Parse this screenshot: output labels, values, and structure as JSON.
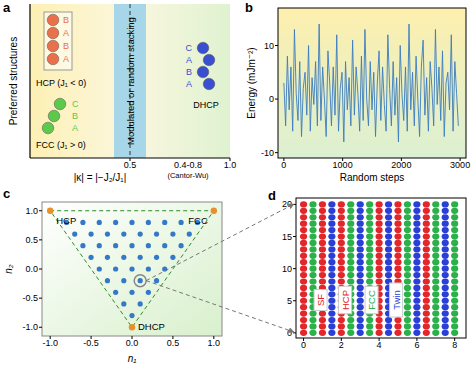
{
  "chart_data": [
    {
      "type": "schematic",
      "panel_label": "a",
      "ylabel": "Preferred structures",
      "xlabel": "|κ| = |−J₂/J₁|",
      "xlim": [
        0,
        1
      ],
      "xticks": [
        0.5,
        {
          "value": 1,
          "label": "1.0"
        }
      ],
      "band": [
        0.42,
        0.58
      ],
      "divider": 0.5,
      "band_label": "Modulated or random stacking",
      "range_label": "0.4-0.8",
      "range_note": "(Cantor-Wu)",
      "structures": [
        {
          "name": "HCP (J₁ < 0)",
          "stack": [
            "B",
            "A",
            "B",
            "A"
          ],
          "color": "#e8704a"
        },
        {
          "name": "FCC (J₁ > 0)",
          "stack": [
            "C",
            "B",
            "A"
          ],
          "color": "#5cc94a"
        },
        {
          "name": "DHCP",
          "stack": [
            "C",
            "A",
            "B",
            "A"
          ],
          "color": "#3a4fd0"
        }
      ]
    },
    {
      "type": "line",
      "panel_label": "b",
      "xlabel": "Random steps",
      "ylabel": "Energy (mJm⁻²)",
      "xlim": [
        -100,
        3100
      ],
      "ylim": [
        -11,
        17
      ],
      "xticks": [
        0,
        1000,
        2000,
        3000
      ],
      "yticks": [
        -10,
        0,
        10
      ],
      "x": [
        0,
        30,
        60,
        90,
        120,
        150,
        180,
        210,
        240,
        270,
        300,
        330,
        360,
        390,
        420,
        450,
        480,
        510,
        540,
        570,
        600,
        630,
        660,
        690,
        720,
        750,
        780,
        810,
        840,
        870,
        900,
        930,
        960,
        990,
        1020,
        1050,
        1080,
        1110,
        1140,
        1170,
        1200,
        1230,
        1260,
        1290,
        1320,
        1350,
        1380,
        1410,
        1440,
        1470,
        1500,
        1530,
        1560,
        1590,
        1620,
        1650,
        1680,
        1710,
        1740,
        1770,
        1800,
        1830,
        1860,
        1890,
        1920,
        1950,
        1980,
        2010,
        2040,
        2070,
        2100,
        2130,
        2160,
        2190,
        2220,
        2250,
        2280,
        2310,
        2340,
        2370,
        2400,
        2430,
        2460,
        2490,
        2520,
        2550,
        2580,
        2610,
        2640,
        2670,
        2700,
        2730,
        2760,
        2790,
        2820,
        2850,
        2880,
        2910,
        2940,
        2970
      ],
      "series": [
        {
          "color": "#3b7cc0",
          "values": [
            3,
            -5,
            8,
            -2,
            6,
            -6,
            13,
            1,
            -4,
            7,
            -7,
            2,
            5,
            -3,
            10,
            -6,
            4,
            -1,
            7,
            -5,
            14,
            -4,
            6,
            0,
            -7,
            9,
            3,
            -5,
            6,
            -3,
            12,
            -6,
            2,
            5,
            -8,
            7,
            -2,
            4,
            -5,
            11,
            -3,
            6,
            1,
            -6,
            8,
            -4,
            13,
            0,
            -5,
            7,
            -2,
            5,
            -7,
            3,
            9,
            -4,
            6,
            -1,
            -6,
            12,
            2,
            -5,
            7,
            -3,
            4,
            -8,
            10,
            1,
            -4,
            6,
            -6,
            14,
            -2,
            5,
            -5,
            8,
            0,
            -7,
            6,
            11,
            -3,
            4,
            -6,
            7,
            2,
            -5,
            13,
            -1,
            6,
            -4,
            9,
            -7,
            3,
            5,
            -2,
            12,
            -6,
            7,
            1,
            -5
          ]
        }
      ]
    },
    {
      "type": "scatter",
      "panel_label": "c",
      "xlabel": "n₁",
      "ylabel": "n₂",
      "xlim": [
        -1.1,
        1.1
      ],
      "ylim": [
        -1.15,
        1.15
      ],
      "xticks": [
        {
          "value": -1,
          "label": "-1.0"
        },
        -0.5,
        {
          "value": 0,
          "label": "0.0"
        },
        0.5,
        {
          "value": 1,
          "label": "1.0"
        }
      ],
      "yticks": [
        {
          "value": -1,
          "label": "-1.0"
        },
        -0.5,
        {
          "value": 0,
          "label": "0.0"
        },
        0.5,
        {
          "value": 1,
          "label": "1.0"
        }
      ],
      "series": [
        {
          "color": "#3478c8",
          "x": [
            -0.8,
            -0.6,
            -0.4,
            -0.2,
            0,
            0.2,
            0.4,
            0.6,
            0.8,
            -0.7,
            -0.5,
            -0.3,
            -0.1,
            0.1,
            0.3,
            0.5,
            0.7,
            -0.6,
            -0.4,
            -0.2,
            0,
            0.2,
            0.4,
            0.6,
            -0.5,
            -0.3,
            -0.1,
            0.1,
            0.3,
            0.5,
            -0.4,
            -0.2,
            0,
            0.2,
            0.4,
            -0.3,
            -0.1,
            0.1,
            0.3,
            -0.2,
            0,
            0.2,
            -0.1,
            0.1,
            0
          ],
          "values": [
            0.8,
            0.8,
            0.8,
            0.8,
            0.8,
            0.8,
            0.8,
            0.8,
            0.8,
            0.6,
            0.6,
            0.6,
            0.6,
            0.6,
            0.6,
            0.6,
            0.6,
            0.4,
            0.4,
            0.4,
            0.4,
            0.4,
            0.4,
            0.4,
            0.2,
            0.2,
            0.2,
            0.2,
            0.2,
            0.2,
            0,
            0,
            0,
            0,
            0,
            -0.2,
            -0.2,
            -0.2,
            -0.2,
            -0.4,
            -0.4,
            -0.4,
            -0.6,
            -0.6,
            -0.8
          ]
        }
      ],
      "vertices": [
        {
          "label": "HCP",
          "x": -1,
          "y": 1,
          "color": "#e8902a"
        },
        {
          "label": "FCC",
          "x": 1,
          "y": 1,
          "color": "#e8902a"
        },
        {
          "label": "DHCP",
          "x": 0,
          "y": -1,
          "color": "#e8902a"
        }
      ],
      "highlight": {
        "x": 0.1,
        "y": -0.2
      }
    },
    {
      "type": "lattice",
      "panel_label": "d",
      "xlim": [
        -0.4,
        8.6
      ],
      "ylim": [
        -0.8,
        21
      ],
      "xticks": [
        0,
        2,
        4,
        6,
        8
      ],
      "yticks": [
        0,
        5,
        10,
        15,
        20
      ],
      "layer_x": [
        0,
        0.5,
        1,
        1.5,
        2,
        2.5,
        3,
        3.5,
        4,
        4.5,
        5,
        5.5,
        6,
        6.5,
        7,
        7.5,
        8
      ],
      "colors": [
        "#e3262a",
        "#2bb04a",
        "#e3262a",
        "#2a3fd6",
        "#e3262a",
        "#2bb04a",
        "#2a3fd6",
        "#2bb04a",
        "#e3262a",
        "#2a3fd6",
        "#e3262a",
        "#2bb04a",
        "#2a3fd6",
        "#e3262a",
        "#2bb04a",
        "#2a3fd6",
        "#2bb04a"
      ],
      "atom_y": [
        0,
        1,
        2,
        3,
        4,
        5,
        6,
        7,
        8,
        9,
        10,
        11,
        12,
        13,
        14,
        15,
        16,
        17,
        18,
        19,
        20
      ],
      "annotations": [
        {
          "text": "SF",
          "x": 0.9,
          "color": "#e3262a"
        },
        {
          "text": "HCP",
          "x": 2.2,
          "color": "#e3262a"
        },
        {
          "text": "FCC",
          "x": 3.6,
          "color": "#2bb04a"
        },
        {
          "text": "Twin",
          "x": 4.9,
          "color": "#2a3fd6"
        }
      ]
    }
  ]
}
